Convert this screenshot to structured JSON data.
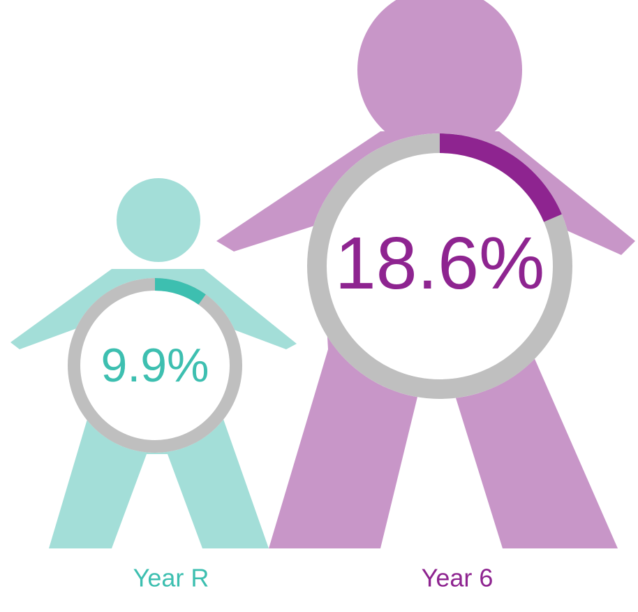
{
  "chart_data": [
    {
      "type": "donut",
      "categories": [
        "Year R"
      ],
      "values": [
        9.9
      ],
      "value_labels": [
        "9.9%"
      ],
      "ylim": [
        0,
        100
      ],
      "color": "#3dbfb0",
      "figure_color": "#a3ded8",
      "ring_color": "#bfbfbf"
    },
    {
      "type": "donut",
      "categories": [
        "Year 6"
      ],
      "values": [
        18.6
      ],
      "value_labels": [
        "18.6%"
      ],
      "ylim": [
        0,
        100
      ],
      "color": "#8e2490",
      "figure_color": "#c896c8",
      "ring_color": "#bfbfbf"
    }
  ]
}
